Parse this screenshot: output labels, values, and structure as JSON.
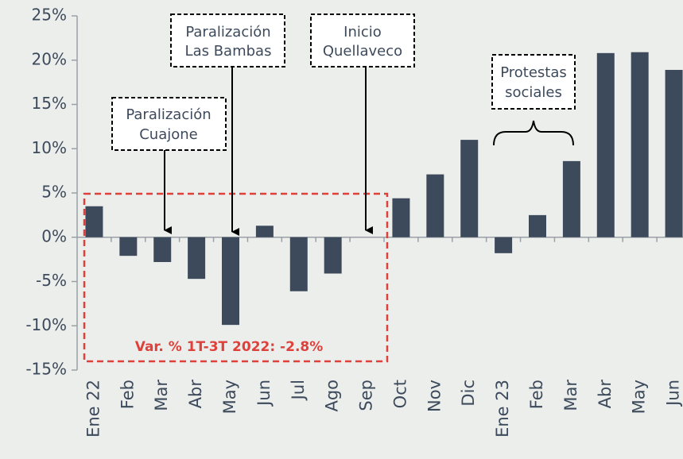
{
  "chart_data": {
    "type": "bar",
    "categories": [
      "Ene 22",
      "Feb",
      "Mar",
      "Abr",
      "May",
      "Jun",
      "Jul",
      "Ago",
      "Sep",
      "Oct",
      "Nov",
      "Dic",
      "Ene 23",
      "Feb",
      "Mar",
      "Abr",
      "May",
      "Jun"
    ],
    "values": [
      3.5,
      -2.1,
      -2.8,
      -4.7,
      -9.9,
      1.3,
      -6.1,
      -4.1,
      0,
      4.4,
      7.1,
      11.0,
      -1.8,
      2.5,
      8.6,
      20.8,
      20.9,
      18.9
    ],
    "color": "#3d4a5c",
    "ylim": [
      -15,
      25
    ],
    "yticks": [
      {
        "value": -15,
        "label": "-15%"
      },
      {
        "value": -10,
        "label": "-10%"
      },
      {
        "value": -5,
        "label": "-5%"
      },
      {
        "value": 0,
        "label": "0%"
      },
      {
        "value": 5,
        "label": "5%"
      },
      {
        "value": 10,
        "label": "10%"
      },
      {
        "value": 15,
        "label": "15%"
      },
      {
        "value": 20,
        "label": "20%"
      },
      {
        "value": 25,
        "label": "25%"
      }
    ],
    "annotations": [
      {
        "lines": [
          "Paralización",
          "Cuajone"
        ]
      },
      {
        "lines": [
          "Paralización",
          "Las Bambas"
        ]
      },
      {
        "lines": [
          "Inicio",
          "Quellaveco"
        ]
      },
      {
        "lines": [
          "Protestas",
          "sociales"
        ]
      },
      {
        "lines": [
          "Var. % 1T-3T 2022: -2.8%"
        ]
      }
    ]
  }
}
